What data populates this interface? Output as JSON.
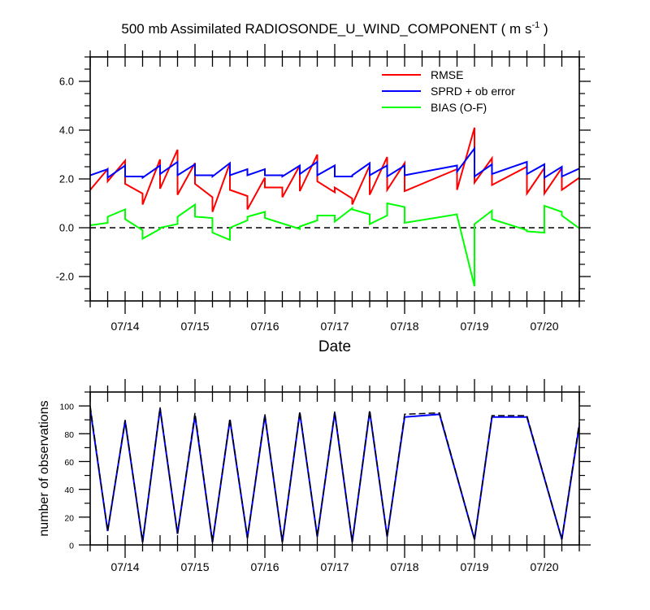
{
  "title_main": "500 mb Assimilated RADIOSONDE_U_WIND_COMPONENT ( m s",
  "title_sup": "-1",
  "title_end": " )",
  "chart_data": [
    {
      "type": "line",
      "title": "500 mb Assimilated RADIOSONDE_U_WIND_COMPONENT ( m s-1 )",
      "xlabel": "Date",
      "ylabel": "",
      "xlim": [
        13.5,
        20.5
      ],
      "ylim": [
        -3.0,
        7.0
      ],
      "x_ticks": [
        14,
        15,
        16,
        17,
        18,
        19,
        20
      ],
      "x_tick_labels": [
        "07/14",
        "07/15",
        "07/16",
        "07/17",
        "07/18",
        "07/19",
        "07/20"
      ],
      "y_ticks": [
        -2,
        0,
        2,
        4,
        6
      ],
      "y_tick_labels": [
        "-2.0",
        "0.0",
        "2.0",
        "4.0",
        "6.0"
      ],
      "legend_position": "top-right",
      "reference_line": {
        "y": 0,
        "style": "dashed",
        "color": "#000000"
      },
      "series": [
        {
          "name": "RMSE",
          "color": "#ff0000",
          "points": [
            [
              13.5,
              1.55
            ],
            [
              13.75,
              2.4
            ],
            [
              13.75,
              1.9
            ],
            [
              14.0,
              2.75
            ],
            [
              14.0,
              1.8
            ],
            [
              14.25,
              1.4
            ],
            [
              14.25,
              0.95
            ],
            [
              14.5,
              2.8
            ],
            [
              14.5,
              1.6
            ],
            [
              14.75,
              3.2
            ],
            [
              14.75,
              1.35
            ],
            [
              15.0,
              2.65
            ],
            [
              15.0,
              1.8
            ],
            [
              15.25,
              1.25
            ],
            [
              15.25,
              0.65
            ],
            [
              15.5,
              2.65
            ],
            [
              15.5,
              1.55
            ],
            [
              15.75,
              1.3
            ],
            [
              15.75,
              0.75
            ],
            [
              16.0,
              2.05
            ],
            [
              16.0,
              1.65
            ],
            [
              16.25,
              1.65
            ],
            [
              16.25,
              1.25
            ],
            [
              16.5,
              2.55
            ],
            [
              16.5,
              1.5
            ],
            [
              16.75,
              3.0
            ],
            [
              16.75,
              1.9
            ],
            [
              17.0,
              1.45
            ],
            [
              17.0,
              1.65
            ],
            [
              17.25,
              1.2
            ],
            [
              17.25,
              0.95
            ],
            [
              17.5,
              2.55
            ],
            [
              17.5,
              1.35
            ],
            [
              17.75,
              2.9
            ],
            [
              17.75,
              1.55
            ],
            [
              18.0,
              2.65
            ],
            [
              18.0,
              1.5
            ],
            [
              18.75,
              2.4
            ],
            [
              18.75,
              1.55
            ],
            [
              19.0,
              4.1
            ],
            [
              19.0,
              1.85
            ],
            [
              19.25,
              2.85
            ],
            [
              19.25,
              1.75
            ],
            [
              19.75,
              2.5
            ],
            [
              19.75,
              1.4
            ],
            [
              20.0,
              2.45
            ],
            [
              20.0,
              1.4
            ],
            [
              20.25,
              2.45
            ],
            [
              20.25,
              1.55
            ],
            [
              20.75,
              2.55
            ],
            [
              20.75,
              1.7
            ]
          ]
        },
        {
          "name": "SPRD + ob error",
          "color": "#0000ff",
          "points": [
            [
              13.5,
              2.15
            ],
            [
              13.75,
              2.4
            ],
            [
              13.75,
              2.05
            ],
            [
              14.0,
              2.55
            ],
            [
              14.0,
              2.1
            ],
            [
              14.25,
              2.1
            ],
            [
              14.25,
              2.05
            ],
            [
              14.5,
              2.55
            ],
            [
              14.5,
              2.2
            ],
            [
              14.75,
              2.7
            ],
            [
              14.75,
              2.15
            ],
            [
              15.0,
              2.6
            ],
            [
              15.0,
              2.15
            ],
            [
              15.25,
              2.15
            ],
            [
              15.25,
              2.1
            ],
            [
              15.5,
              2.65
            ],
            [
              15.5,
              2.15
            ],
            [
              15.75,
              2.4
            ],
            [
              15.75,
              2.15
            ],
            [
              16.0,
              2.4
            ],
            [
              16.0,
              2.15
            ],
            [
              16.25,
              2.15
            ],
            [
              16.25,
              2.1
            ],
            [
              16.5,
              2.55
            ],
            [
              16.5,
              2.2
            ],
            [
              16.75,
              2.7
            ],
            [
              16.75,
              2.15
            ],
            [
              17.0,
              2.55
            ],
            [
              17.0,
              2.1
            ],
            [
              17.25,
              2.1
            ],
            [
              17.25,
              2.15
            ],
            [
              17.5,
              2.65
            ],
            [
              17.5,
              2.15
            ],
            [
              17.75,
              2.55
            ],
            [
              17.75,
              2.1
            ],
            [
              18.0,
              2.55
            ],
            [
              18.0,
              2.15
            ],
            [
              18.75,
              2.55
            ],
            [
              18.75,
              2.3
            ],
            [
              19.0,
              3.25
            ],
            [
              19.0,
              2.1
            ],
            [
              19.25,
              2.6
            ],
            [
              19.25,
              2.2
            ],
            [
              19.75,
              2.7
            ],
            [
              19.75,
              2.2
            ],
            [
              20.0,
              2.6
            ],
            [
              20.0,
              2.05
            ],
            [
              20.25,
              2.5
            ],
            [
              20.25,
              2.1
            ],
            [
              20.75,
              2.75
            ],
            [
              20.75,
              2.2
            ]
          ]
        },
        {
          "name": "BIAS (O-F)",
          "color": "#00ff00",
          "points": [
            [
              13.5,
              0.1
            ],
            [
              13.75,
              0.2
            ],
            [
              13.75,
              0.45
            ],
            [
              14.0,
              0.75
            ],
            [
              14.0,
              0.35
            ],
            [
              14.25,
              -0.1
            ],
            [
              14.25,
              -0.45
            ],
            [
              14.5,
              -0.05
            ],
            [
              14.5,
              0.0
            ],
            [
              14.75,
              0.15
            ],
            [
              14.75,
              0.45
            ],
            [
              15.0,
              0.95
            ],
            [
              15.0,
              0.45
            ],
            [
              15.25,
              0.4
            ],
            [
              15.25,
              -0.2
            ],
            [
              15.5,
              -0.5
            ],
            [
              15.5,
              0.0
            ],
            [
              15.75,
              0.3
            ],
            [
              15.75,
              0.45
            ],
            [
              16.0,
              0.65
            ],
            [
              16.0,
              0.4
            ],
            [
              16.5,
              -0.05
            ],
            [
              16.5,
              0.05
            ],
            [
              16.75,
              0.3
            ],
            [
              16.75,
              0.5
            ],
            [
              17.0,
              0.5
            ],
            [
              17.0,
              0.25
            ],
            [
              17.25,
              0.8
            ],
            [
              17.25,
              0.75
            ],
            [
              17.5,
              0.55
            ],
            [
              17.5,
              0.15
            ],
            [
              17.75,
              0.5
            ],
            [
              17.75,
              1.0
            ],
            [
              18.0,
              0.85
            ],
            [
              18.0,
              0.2
            ],
            [
              18.75,
              0.55
            ],
            [
              18.75,
              0.5
            ],
            [
              19.0,
              -2.4
            ],
            [
              19.0,
              0.15
            ],
            [
              19.25,
              0.7
            ],
            [
              19.25,
              0.35
            ],
            [
              19.75,
              -0.1
            ],
            [
              19.75,
              -0.15
            ],
            [
              20.0,
              -0.2
            ],
            [
              20.0,
              0.9
            ],
            [
              20.25,
              0.65
            ],
            [
              20.25,
              0.5
            ],
            [
              20.75,
              -0.55
            ]
          ]
        }
      ]
    },
    {
      "type": "line",
      "xlabel": "",
      "ylabel": "number of observations",
      "xlim": [
        13.5,
        20.5
      ],
      "ylim": [
        0,
        110
      ],
      "x_ticks": [
        14,
        15,
        16,
        17,
        18,
        19,
        20
      ],
      "x_tick_labels": [
        "07/14",
        "07/15",
        "07/16",
        "07/17",
        "07/18",
        "07/19",
        "07/20"
      ],
      "y_ticks": [
        0,
        20,
        40,
        60,
        80,
        100
      ],
      "y_tick_labels": [
        "0",
        "20",
        "40",
        "60",
        "80",
        "100"
      ],
      "series": [
        {
          "color": "#0000ff",
          "style": "solid",
          "points": [
            [
              13.5,
              98
            ],
            [
              13.75,
              10
            ],
            [
              14.0,
              89
            ],
            [
              14.25,
              2
            ],
            [
              14.5,
              98
            ],
            [
              14.75,
              8
            ],
            [
              15.0,
              93
            ],
            [
              15.25,
              2
            ],
            [
              15.5,
              90
            ],
            [
              15.75,
              5
            ],
            [
              16.0,
              93
            ],
            [
              16.25,
              2
            ],
            [
              16.5,
              95
            ],
            [
              16.75,
              6
            ],
            [
              17.0,
              95
            ],
            [
              17.25,
              2
            ],
            [
              17.5,
              96
            ],
            [
              17.75,
              6
            ],
            [
              18.0,
              92
            ],
            [
              18.5,
              94
            ],
            [
              19.0,
              4
            ],
            [
              19.25,
              92
            ],
            [
              19.75,
              92
            ],
            [
              20.25,
              4
            ],
            [
              20.5,
              86
            ],
            [
              21.0,
              96
            ]
          ]
        },
        {
          "color": "#000000",
          "style": "dashed",
          "points": [
            [
              13.5,
              100
            ],
            [
              13.75,
              10
            ],
            [
              14.0,
              90
            ],
            [
              14.25,
              2
            ],
            [
              14.5,
              99
            ],
            [
              14.75,
              8
            ],
            [
              15.0,
              95
            ],
            [
              15.25,
              2
            ],
            [
              15.5,
              91
            ],
            [
              15.75,
              5
            ],
            [
              16.0,
              94
            ],
            [
              16.25,
              2
            ],
            [
              16.5,
              96
            ],
            [
              16.75,
              6
            ],
            [
              17.0,
              96
            ],
            [
              17.25,
              2
            ],
            [
              17.5,
              97
            ],
            [
              17.75,
              6
            ],
            [
              18.0,
              94
            ],
            [
              18.5,
              95
            ],
            [
              19.0,
              4
            ],
            [
              19.25,
              93
            ],
            [
              19.75,
              93
            ],
            [
              20.25,
              4
            ],
            [
              20.5,
              88
            ],
            [
              21.0,
              98
            ]
          ]
        }
      ]
    }
  ]
}
